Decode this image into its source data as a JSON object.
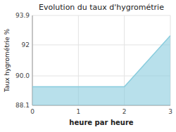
{
  "chart_data": {
    "type": "area",
    "title": "Evolution du taux d'hygrométrie",
    "x_label": "heure par heure",
    "y_label": "Taux hygrométrie %",
    "x": [
      0,
      2,
      3
    ],
    "values": [
      89.3,
      89.3,
      92.6
    ],
    "color": "#88ccdd",
    "xlim": [
      0,
      3
    ],
    "xticks": [
      0,
      1,
      2,
      3
    ],
    "ylim": [
      88.1,
      93.9
    ],
    "yticks": [
      88.1,
      {
        "value": 90.0,
        "label": "90.0"
      },
      92.0,
      93.9
    ],
    "grid": true
  }
}
